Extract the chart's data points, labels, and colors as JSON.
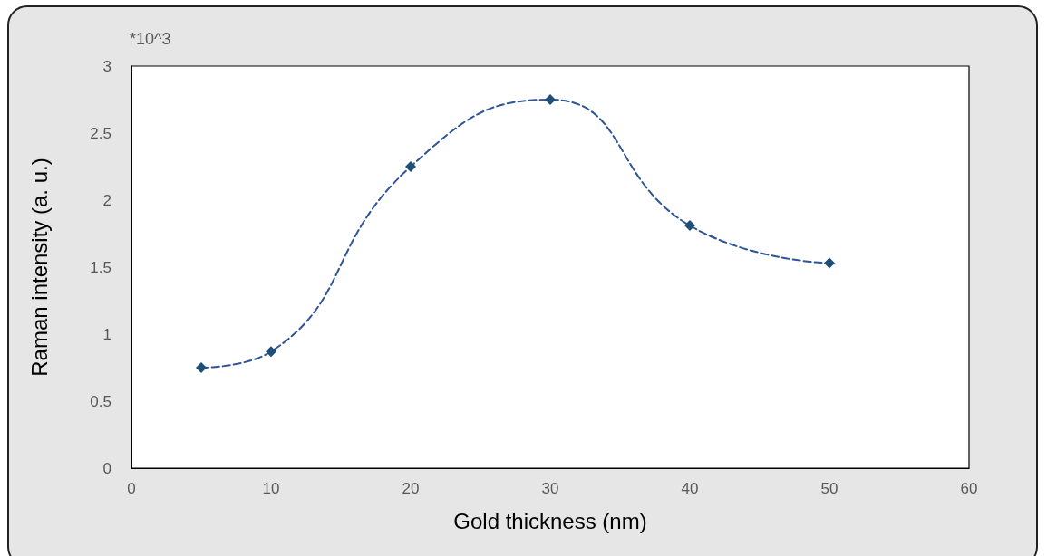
{
  "chart_data": {
    "type": "line",
    "xlabel": "Gold thickness (nm)",
    "ylabel": "Raman intensity (a. u.)",
    "annotations": [
      "*10^3"
    ],
    "x": [
      5,
      10,
      20,
      30,
      40,
      50
    ],
    "series": [
      {
        "color": "#2f5597",
        "values": [
          0.75,
          0.87,
          2.25,
          2.75,
          1.81,
          1.53
        ]
      }
    ],
    "xlim": [
      0,
      60
    ],
    "xticks": [
      0,
      10,
      20,
      30,
      40,
      50,
      60
    ],
    "ylim": [
      0,
      3
    ],
    "yticks": [
      0,
      0.5,
      1,
      1.5,
      2,
      2.5,
      3
    ],
    "grid": false,
    "marker": "diamond",
    "line_style": "dashed"
  }
}
